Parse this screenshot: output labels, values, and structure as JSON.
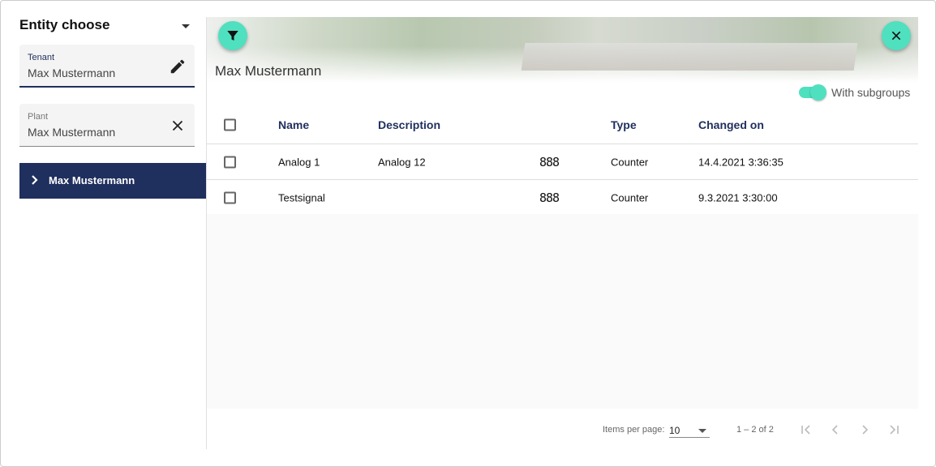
{
  "sidebar": {
    "title": "Entity choose",
    "tenant": {
      "label": "Tenant",
      "value": "Max Mustermann"
    },
    "plant": {
      "label": "Plant",
      "value": "Max Mustermann"
    },
    "tree_item": "Max Mustermann"
  },
  "main": {
    "title": "Max Mustermann",
    "toggle_label": "With subgroups",
    "toggle_on": true,
    "columns": [
      "Name",
      "Description",
      "",
      "Type",
      "Changed on"
    ],
    "rows": [
      {
        "name": "Analog 1",
        "description": "Analog 12",
        "icon": "888",
        "type": "Counter",
        "changed": "14.4.2021 3:36:35"
      },
      {
        "name": "Testsignal",
        "description": "",
        "icon": "888",
        "type": "Counter",
        "changed": "9.3.2021 3:30:00"
      }
    ]
  },
  "pager": {
    "items_per_page_label": "Items per page:",
    "items_per_page": "10",
    "range": "1 – 2 of 2"
  },
  "colors": {
    "accent": "#4fe0c0",
    "primary": "#1f2f5e"
  }
}
